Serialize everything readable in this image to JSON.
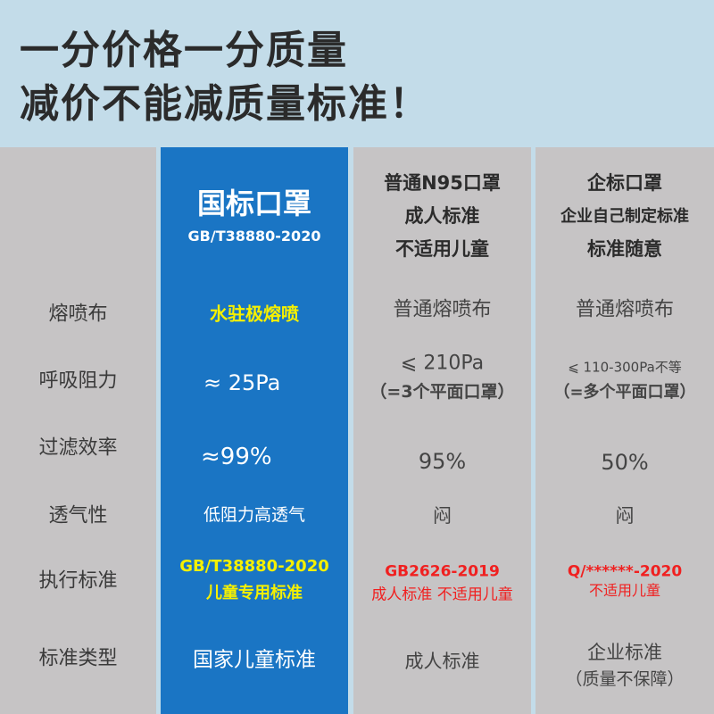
{
  "headline": [
    "一分价格一分质量",
    "减价不能减质量标准！"
  ],
  "row_labels": [
    "熔喷布",
    "呼吸阻力",
    "过滤效率",
    "透气性",
    "执行标准",
    "标准类型"
  ],
  "columns": [
    {
      "title": "国标口罩",
      "subtitle": "GB/T38880-2020",
      "values": [
        "水驻极熔喷",
        "≈ 25Pa",
        "≈99%",
        "低阻力高透气",
        "GB/T38880-2020",
        "儿童专用标准",
        "国家儿童标准"
      ]
    },
    {
      "title_lines": [
        "普通N95口罩",
        "成人标准",
        "不适用儿童"
      ],
      "values": [
        "普通熔喷布",
        "⩽ 210Pa",
        "（=3个平面口罩）",
        "95%",
        "闷",
        "GB2626-2019",
        "成人标准 不适用儿童",
        "成人标准"
      ]
    },
    {
      "title_lines": [
        "企标口罩",
        "企业自己制定标准",
        "标准随意"
      ],
      "values": [
        "普通熔喷布",
        "⩽ 110-300Pa不等",
        "（=多个平面口罩）",
        "50%",
        "闷",
        "Q/******-2020",
        "不适用儿童",
        "企业标准",
        "（质量不保障）"
      ]
    }
  ],
  "colors": {
    "header_bg": "#c3dce9",
    "highlight_column": "#1a75c4",
    "gray_column": "#c6c4c5",
    "warning": "#f02020",
    "highlight_text": "#f5f000"
  }
}
